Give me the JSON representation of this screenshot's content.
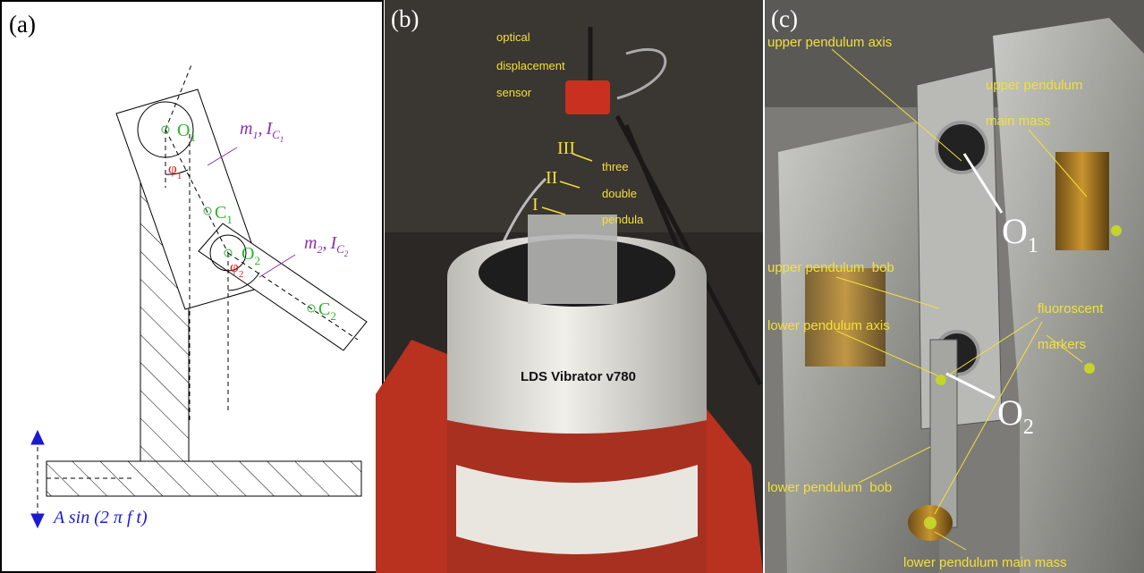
{
  "panel_a": {
    "label": "(a)",
    "points": [
      {
        "name": "O",
        "sub": "1"
      },
      {
        "name": "C",
        "sub": "1"
      },
      {
        "name": "O",
        "sub": "2"
      },
      {
        "name": "C",
        "sub": "2"
      }
    ],
    "angles": [
      {
        "name": "φ",
        "sub": "1"
      },
      {
        "name": "φ",
        "sub": "2"
      }
    ],
    "masses": [
      {
        "mass": "m",
        "mass_sub": "1",
        "separator": ",",
        "inertia": "I",
        "inertia_sub": "C",
        "inertia_subsub": "1"
      },
      {
        "mass": "m",
        "mass_sub": "2",
        "separator": ",",
        "inertia": "I",
        "inertia_sub": "C",
        "inertia_subsub": "2"
      }
    ],
    "excitation": "A sin (2 π f t)"
  },
  "panel_b": {
    "label": "(b)",
    "sensor_label": [
      "optical",
      "displacement",
      "sensor"
    ],
    "pendula_label": [
      "three",
      "double",
      "pendula"
    ],
    "pendula_numbers": [
      "III",
      "II",
      "I"
    ],
    "vibrator": "LDS Vibrator v780"
  },
  "panel_c": {
    "label": "(c)",
    "annotations": [
      "upper pendulum axis",
      "upper pendulum",
      "main mass",
      "upper pendulum  bob",
      "lower pendulum axis",
      "fluoroscent",
      "markers",
      "lower pendulum  bob",
      "lower pendulum main mass"
    ],
    "axes": [
      {
        "name": "O",
        "sub": "1"
      },
      {
        "name": "O",
        "sub": "2"
      }
    ]
  }
}
